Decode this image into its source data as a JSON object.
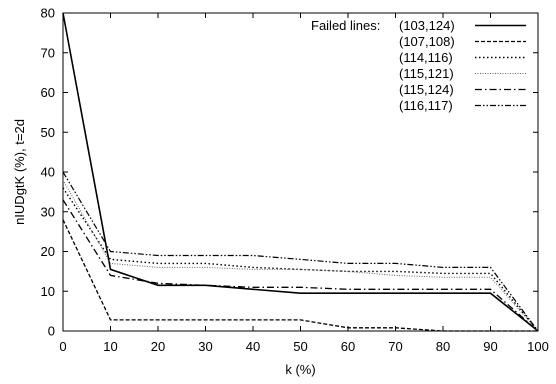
{
  "chart_data": {
    "type": "line",
    "xlabel": "k (%)",
    "ylabel": "nIUDgtK (%), t=2d",
    "xlim": [
      0,
      100
    ],
    "ylim": [
      0,
      80
    ],
    "x_ticks": [
      "0",
      "10",
      "20",
      "30",
      "40",
      "50",
      "60",
      "70",
      "80",
      "90",
      "100"
    ],
    "y_ticks": [
      "0",
      "10",
      "20",
      "30",
      "40",
      "50",
      "60",
      "70",
      "80"
    ],
    "x": [
      0,
      10,
      20,
      30,
      40,
      50,
      60,
      70,
      80,
      90,
      100
    ],
    "grid": false,
    "legend": {
      "title": "Failed lines:",
      "placement": "top-right"
    },
    "series": [
      {
        "name": "(103,124)",
        "style": "solid",
        "values": [
          80,
          15.5,
          11.5,
          11.5,
          10.5,
          9.5,
          9.5,
          9.5,
          9.5,
          9.5,
          0
        ]
      },
      {
        "name": "(107,108)",
        "style": "dashed",
        "values": [
          28,
          2.8,
          2.8,
          2.8,
          2.8,
          2.8,
          0.8,
          0.8,
          0,
          0,
          0
        ]
      },
      {
        "name": "(114,116)",
        "style": "dotted",
        "values": [
          36,
          18,
          17,
          17,
          16,
          15.5,
          15,
          15,
          14.5,
          14.5,
          0
        ]
      },
      {
        "name": "(115,121)",
        "style": "fine-dotted",
        "values": [
          38,
          17,
          16,
          16,
          15.5,
          15.5,
          15,
          14,
          13.5,
          13.5,
          0
        ]
      },
      {
        "name": "(115,124)",
        "style": "dash-dot",
        "values": [
          33,
          14,
          12,
          11.5,
          11,
          11,
          10.5,
          10.5,
          10.5,
          10.5,
          0
        ]
      },
      {
        "name": "(116,117)",
        "style": "dash-dot-dot",
        "values": [
          40,
          20,
          19,
          19,
          19,
          18,
          17,
          17,
          16,
          16,
          0
        ]
      }
    ]
  }
}
